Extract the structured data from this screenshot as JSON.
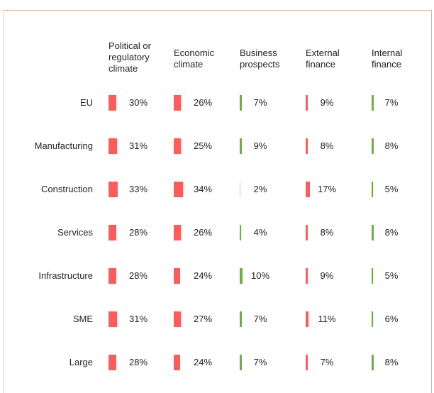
{
  "chart_data": {
    "type": "bar",
    "categories": [
      "EU",
      "Manufacturing",
      "Construction",
      "Services",
      "Infrastructure",
      "SME",
      "Large"
    ],
    "series": [
      {
        "name": "Political or regulatory climate",
        "color": "#ff5b5b",
        "values": [
          30,
          31,
          33,
          28,
          28,
          31,
          28
        ],
        "value_labels": [
          "30%",
          "31%",
          "33%",
          "28%",
          "28%",
          "31%",
          "28%"
        ]
      },
      {
        "name": "Economic climate",
        "color": "#ff5b5b",
        "values": [
          26,
          25,
          34,
          26,
          24,
          27,
          24
        ],
        "value_labels": [
          "26%",
          "25%",
          "34%",
          "26%",
          "24%",
          "27%",
          "24%"
        ]
      },
      {
        "name": "Business prospects",
        "color": "#70ad47",
        "colors": [
          "#70ad47",
          "#70ad47",
          "#f4b6b6",
          "#70ad47",
          "#70ad47",
          "#70ad47",
          "#70ad47"
        ],
        "values": [
          7,
          9,
          2,
          4,
          10,
          7,
          7
        ],
        "value_labels": [
          "7%",
          "9%",
          "2%",
          "4%",
          "10%",
          "7%",
          "7%"
        ]
      },
      {
        "name": "External finance",
        "color": "#ff5b5b",
        "values": [
          9,
          8,
          17,
          8,
          9,
          11,
          7
        ],
        "value_labels": [
          "9%",
          "8%",
          "17%",
          "8%",
          "9%",
          "11%",
          "7%"
        ]
      },
      {
        "name": "Internal finance",
        "color": "#70ad47",
        "values": [
          7,
          8,
          5,
          8,
          5,
          6,
          8
        ],
        "value_labels": [
          "7%",
          "8%",
          "5%",
          "8%",
          "5%",
          "6%",
          "8%"
        ]
      }
    ]
  }
}
